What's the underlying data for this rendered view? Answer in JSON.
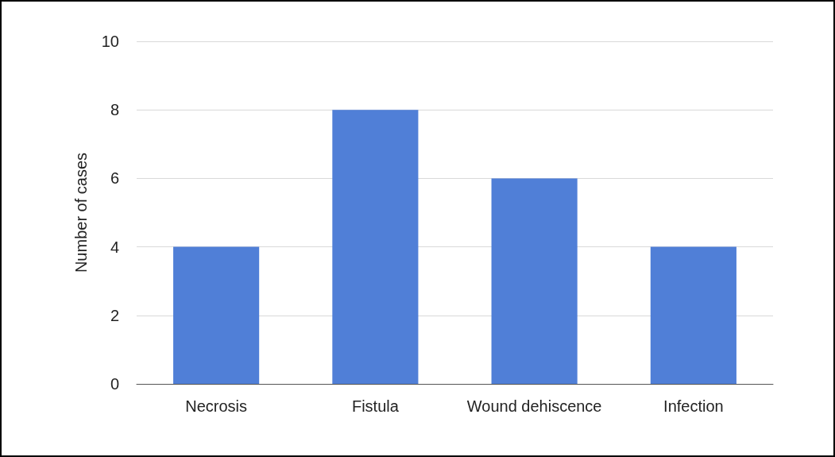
{
  "chart_data": {
    "type": "bar",
    "ylabel": "Number of cases",
    "categories": [
      "Necrosis",
      "Fistula",
      "Wound dehiscence",
      "Infection"
    ],
    "values": [
      4,
      8,
      6,
      4
    ],
    "color": "#507fd7",
    "ylim": [
      0,
      10
    ],
    "yticks": [
      0,
      2,
      4,
      6,
      8,
      10
    ],
    "grid": "y"
  }
}
